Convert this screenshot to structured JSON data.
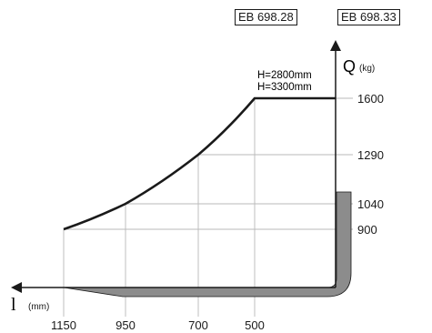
{
  "model_codes": [
    "EB 698.28",
    "EB 698.33"
  ],
  "heights": [
    "H=2800mm",
    "H=3300mm"
  ],
  "chart_data": {
    "type": "line",
    "y_axis": {
      "symbol": "Q",
      "unit": "(kg)",
      "ticks": [
        1600,
        1290,
        1040,
        900
      ]
    },
    "x_axis": {
      "symbol": "l",
      "unit": "(mm)",
      "ticks": [
        1150,
        950,
        700,
        500
      ]
    },
    "series": [
      {
        "x": [
          1150,
          950,
          700,
          500,
          0
        ],
        "y": [
          900,
          1040,
          1290,
          1600,
          1600
        ]
      }
    ],
    "grid": true,
    "colors": {
      "curve": "#1a1a1a",
      "grid": "#b8b8b8",
      "fork": "#8c8c8c"
    }
  }
}
